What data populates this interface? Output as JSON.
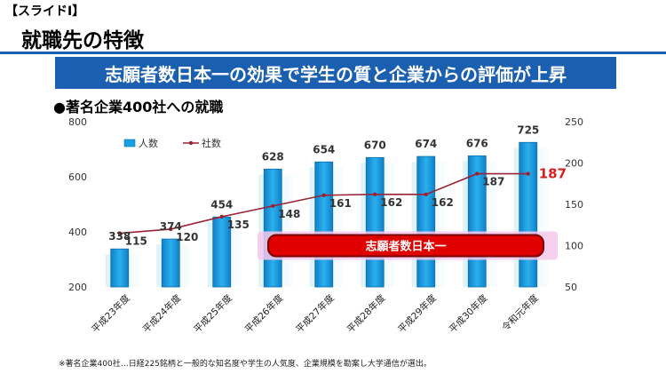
{
  "header": {
    "slide_label": "【スライドⅠ】",
    "title": "就職先の特徴"
  },
  "banner": {
    "text": "志願者数日本一の効果で学生の質と企業からの評価が上昇"
  },
  "section": {
    "heading": "●著名企業400社への就職"
  },
  "footnote": "※著名企業400社…日経225銘柄と一般的な知名度や学生の人気度、企業規模を勘案し大学通信が選出。",
  "colors": {
    "bar": "#1a9fe0",
    "line": "#9b2335",
    "last_value": "#d62020",
    "callout_fill": "#e00000",
    "callout_border": "#7a0000",
    "callout_glow": "#f7c8ec"
  },
  "chart_data": {
    "type": "bar",
    "categories": [
      "平成23年度",
      "平成24年度",
      "平成25年度",
      "平成26年度",
      "平成27年度",
      "平成28年度",
      "平成29年度",
      "平成30年度",
      "令和元年度"
    ],
    "series": [
      {
        "name": "人数",
        "type": "bar",
        "axis": "left",
        "values": [
          338,
          374,
          454,
          628,
          654,
          670,
          674,
          676,
          725
        ]
      },
      {
        "name": "社数",
        "type": "line",
        "axis": "right",
        "values": [
          115,
          120,
          135,
          148,
          161,
          162,
          162,
          187,
          187
        ]
      }
    ],
    "y_left": {
      "min": 200,
      "max": 800,
      "ticks": [
        200,
        400,
        600,
        800
      ]
    },
    "y_right": {
      "min": 50,
      "max": 250,
      "ticks": [
        50,
        100,
        150,
        200,
        250
      ]
    },
    "annotation": "志願者数日本一",
    "legend_position": "top-left",
    "grid": false
  }
}
